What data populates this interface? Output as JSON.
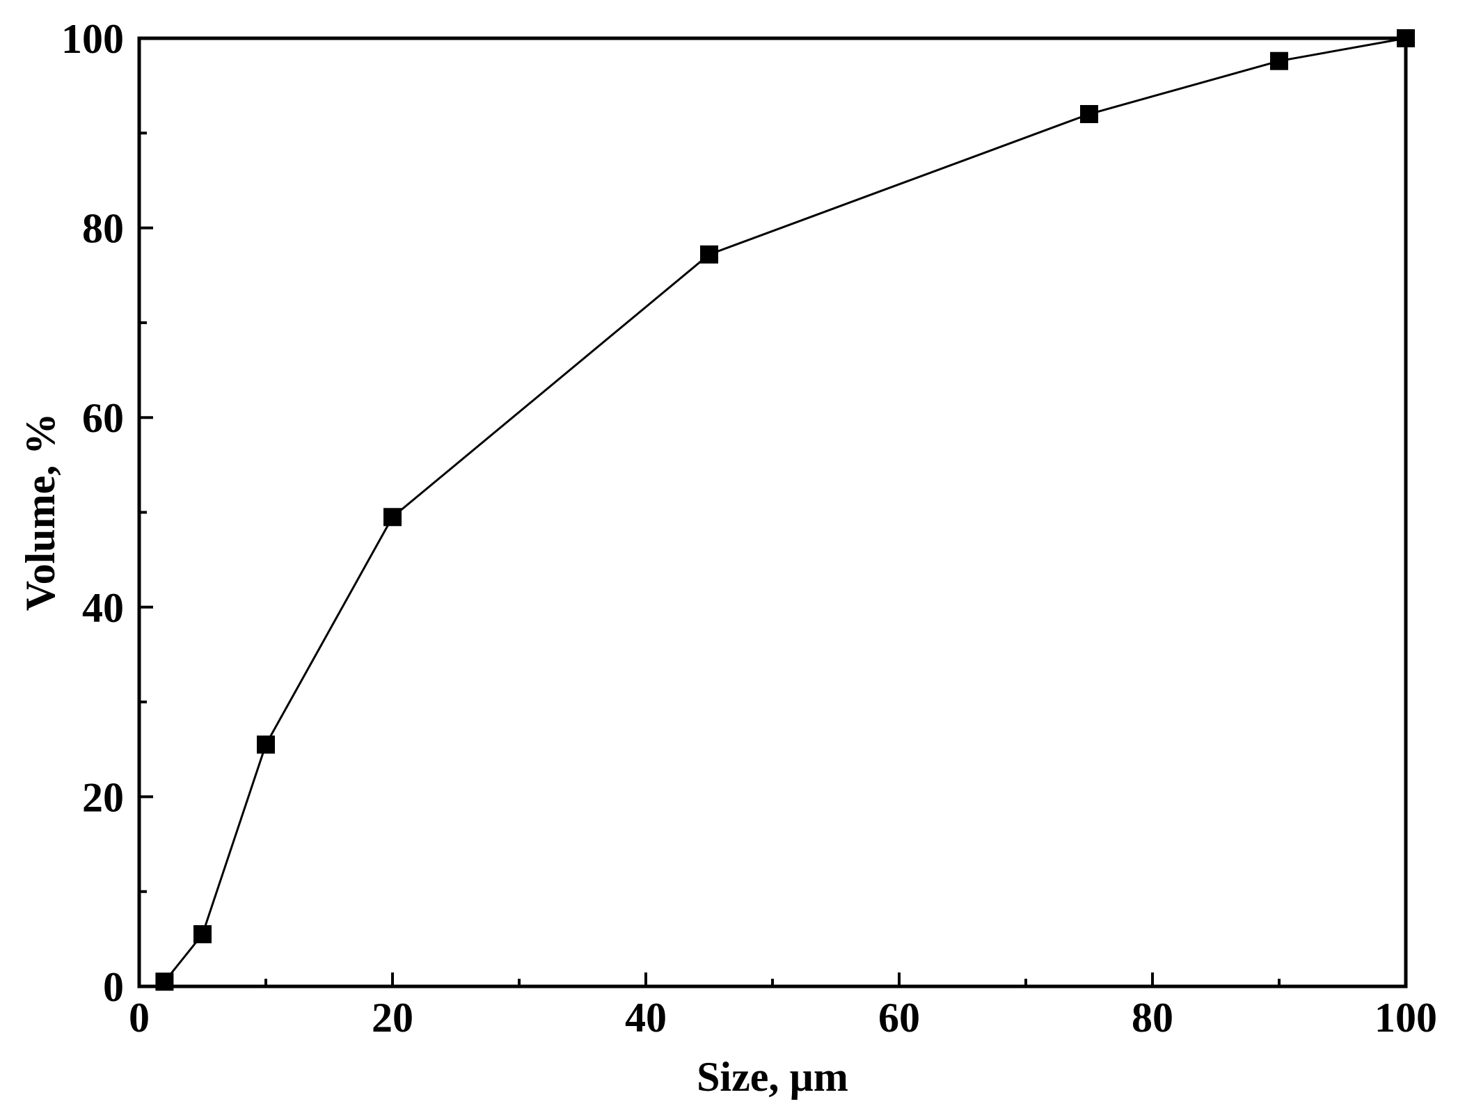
{
  "chart_data": {
    "type": "line",
    "title": "",
    "xlabel": "Size, µm",
    "ylabel": "Volume, %",
    "xlim": [
      0,
      100
    ],
    "ylim": [
      0,
      100
    ],
    "x_major_ticks": [
      0,
      20,
      40,
      60,
      80,
      100
    ],
    "x_major_tick_labels": [
      "0",
      "20",
      "40",
      "60",
      "80",
      "100"
    ],
    "x_minor_ticks": [
      10,
      30,
      50,
      70,
      90
    ],
    "y_major_ticks": [
      0,
      20,
      40,
      60,
      80,
      100
    ],
    "y_major_tick_labels": [
      "0",
      "20",
      "40",
      "60",
      "80",
      "100"
    ],
    "y_minor_ticks": [
      10,
      30,
      50,
      70,
      90
    ],
    "grid": false,
    "legend": "none",
    "marker": "filled-square",
    "colors": {
      "line": "#000000",
      "marker": "#000000",
      "axes": "#000000",
      "background": "#ffffff"
    },
    "series": [
      {
        "x": [
          2,
          5,
          10,
          20,
          45,
          75,
          90,
          100
        ],
        "y": [
          0.5,
          5.5,
          25.5,
          49.5,
          77.2,
          92,
          97.6,
          100
        ]
      }
    ]
  }
}
